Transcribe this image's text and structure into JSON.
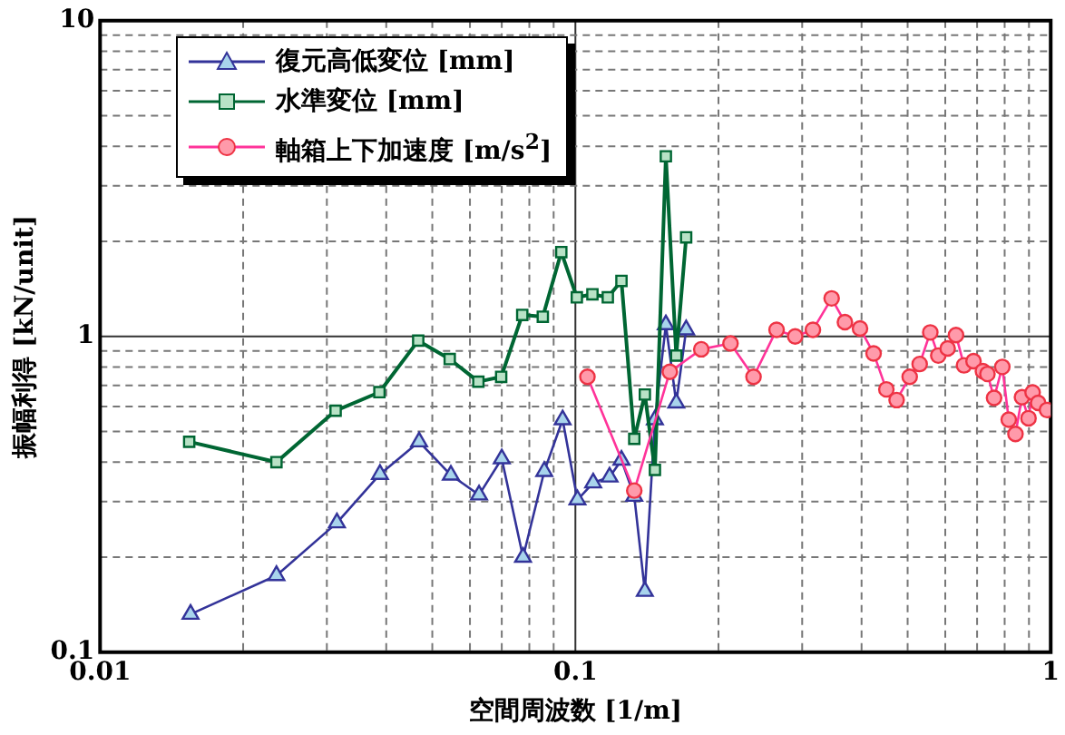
{
  "chart_data": {
    "type": "line",
    "xlabel": "空間周波数 [1/m]",
    "ylabel": "振幅利得 [kN/unit]",
    "log": "xy",
    "grid": true,
    "legend": "top left",
    "line_style": "solid",
    "xlim": [
      0.01,
      1
    ],
    "ylim": [
      0.1,
      10
    ],
    "xticks": [
      0.01,
      {
        "value": 0.02,
        "label": null
      },
      {
        "value": 0.03,
        "label": null
      },
      {
        "value": 0.04,
        "label": null
      },
      {
        "value": 0.05,
        "label": null
      },
      {
        "value": 0.06,
        "label": null
      },
      {
        "value": 0.07,
        "label": null
      },
      {
        "value": 0.08,
        "label": null
      },
      {
        "value": 0.09,
        "label": null
      },
      0.1,
      {
        "value": 0.2,
        "label": null
      },
      {
        "value": 0.3,
        "label": null
      },
      {
        "value": 0.4,
        "label": null
      },
      {
        "value": 0.5,
        "label": null
      },
      {
        "value": 0.6,
        "label": null
      },
      {
        "value": 0.7,
        "label": null
      },
      {
        "value": 0.8,
        "label": null
      },
      {
        "value": 0.9,
        "label": null
      },
      1
    ],
    "yticks": [
      0.1,
      {
        "value": 0.2,
        "label": null
      },
      {
        "value": 0.3,
        "label": null
      },
      {
        "value": 0.4,
        "label": null
      },
      {
        "value": 0.5,
        "label": null
      },
      {
        "value": 0.6,
        "label": null
      },
      {
        "value": 0.7,
        "label": null
      },
      {
        "value": 0.8,
        "label": null
      },
      {
        "value": 0.9,
        "label": null
      },
      1,
      {
        "value": 2,
        "label": null
      },
      {
        "value": 3,
        "label": null
      },
      {
        "value": 4,
        "label": null
      },
      {
        "value": 5,
        "label": null
      },
      {
        "value": 6,
        "label": null
      },
      {
        "value": 7,
        "label": null
      },
      {
        "value": 8,
        "label": null
      },
      {
        "value": 9,
        "label": null
      },
      10
    ],
    "series": [
      {
        "name": "復元高低変位 [mm]",
        "color": "#333399",
        "marker": "triangle",
        "x": [
          0.0155,
          0.0235,
          0.0315,
          0.0388,
          0.0469,
          0.0547,
          0.0627,
          0.07,
          0.0776,
          0.086,
          0.094,
          0.101,
          0.109,
          0.118,
          0.125,
          0.133,
          0.14,
          0.147,
          0.155,
          0.163,
          0.171
        ],
        "values": [
          0.132,
          0.175,
          0.257,
          0.366,
          0.464,
          0.364,
          0.315,
          0.41,
          0.2,
          0.374,
          0.545,
          0.304,
          0.344,
          0.359,
          0.406,
          0.312,
          0.156,
          0.545,
          1.09,
          0.616,
          1.05
        ]
      },
      {
        "name": "水準変位 [mm]",
        "color": "#006633",
        "marker": "square",
        "x": [
          0.0154,
          0.0235,
          0.0313,
          0.0387,
          0.0467,
          0.0544,
          0.0625,
          0.0698,
          0.0773,
          0.0854,
          0.0934,
          0.1007,
          0.1086,
          0.117,
          0.125,
          0.133,
          0.14,
          0.147,
          0.155,
          0.163,
          0.171
        ],
        "values": [
          0.464,
          0.4,
          0.582,
          0.666,
          0.97,
          0.848,
          0.719,
          0.745,
          1.17,
          1.155,
          1.85,
          1.33,
          1.36,
          1.33,
          1.5,
          0.474,
          0.655,
          0.378,
          3.72,
          0.87,
          2.06
        ]
      },
      {
        "name": "軸箱上下加速度 [m/s$^{2}$]",
        "color": "#ff3399",
        "marker": "circle",
        "x": [
          0.106,
          0.133,
          0.158,
          0.184,
          0.212,
          0.237,
          0.265,
          0.29,
          0.316,
          0.346,
          0.369,
          0.397,
          0.424,
          0.451,
          0.474,
          0.505,
          0.53,
          0.558,
          0.58,
          0.607,
          0.632,
          0.657,
          0.688,
          0.72,
          0.736,
          0.76,
          0.791,
          0.816,
          0.843,
          0.87,
          0.898,
          0.916,
          0.941,
          0.982
        ],
        "values": [
          0.745,
          0.325,
          0.773,
          0.911,
          0.95,
          0.745,
          1.05,
          1.0,
          1.05,
          1.32,
          1.11,
          1.06,
          0.884,
          0.68,
          0.629,
          0.745,
          0.818,
          1.03,
          0.87,
          0.916,
          1.01,
          0.81,
          0.835,
          0.777,
          0.761,
          0.639,
          0.801,
          0.545,
          0.491,
          0.642,
          0.551,
          0.665,
          0.616,
          0.585
        ]
      }
    ]
  }
}
